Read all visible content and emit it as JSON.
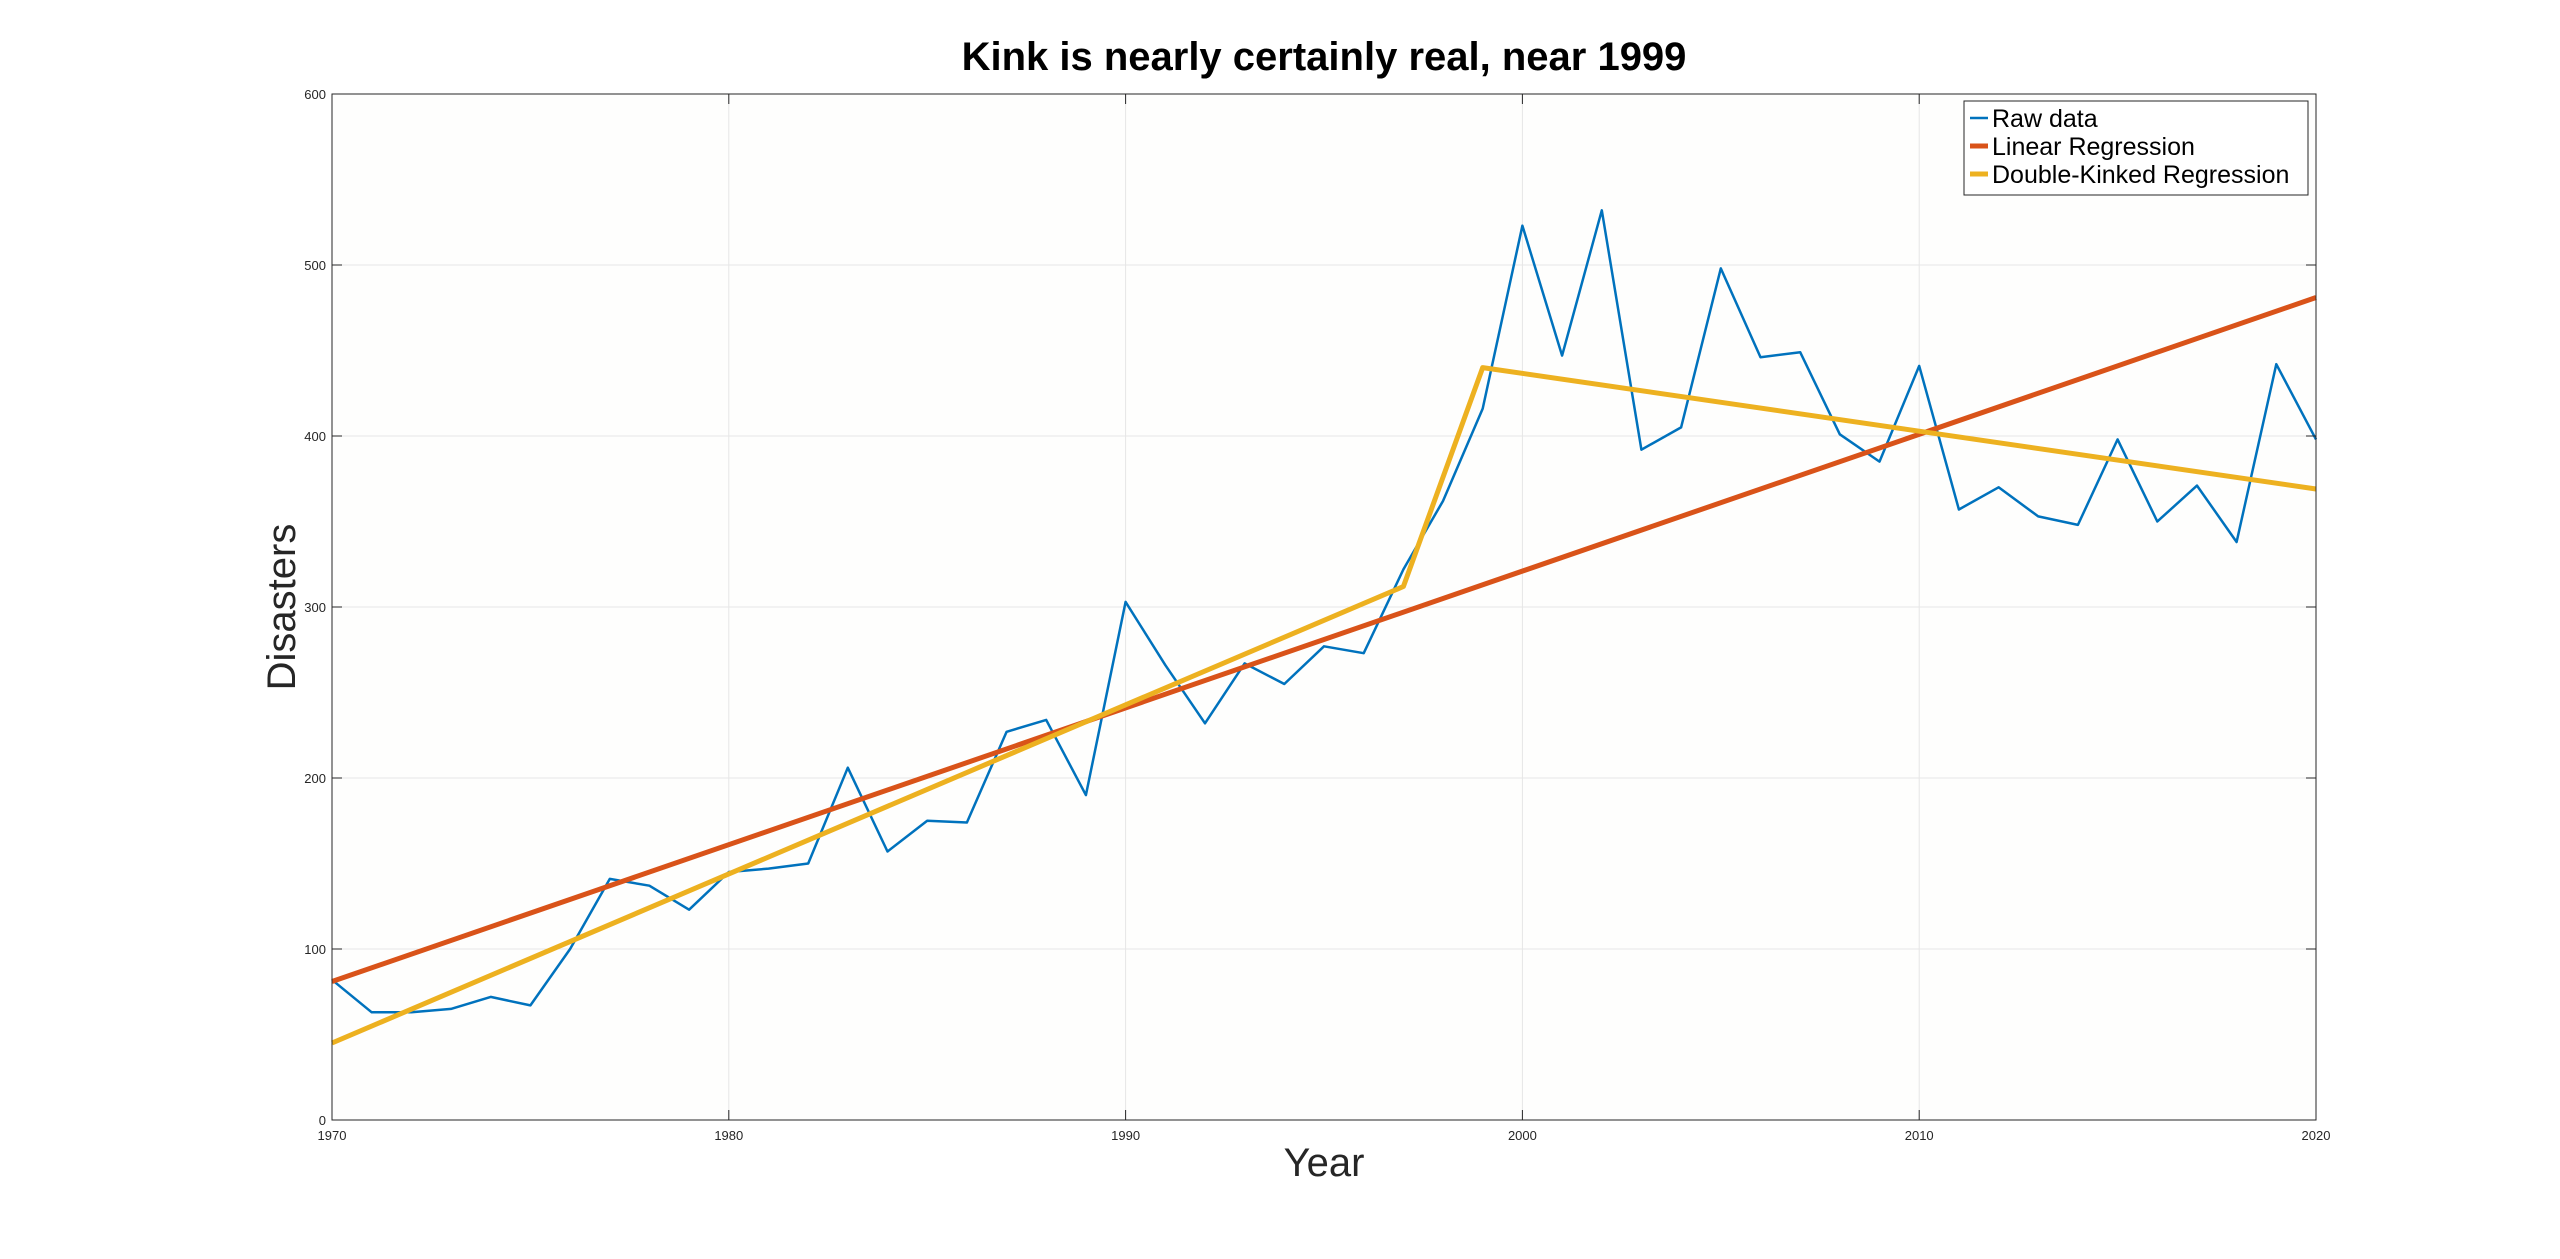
{
  "chart_data": {
    "type": "line",
    "title": "Kink is nearly certainly real, near 1999",
    "xlabel": "Year",
    "ylabel": "Disasters",
    "xlim": [
      1970,
      2020
    ],
    "ylim": [
      0,
      600
    ],
    "xticks": [
      1970,
      1980,
      1990,
      2000,
      2010,
      2020
    ],
    "yticks": [
      0,
      100,
      200,
      300,
      400,
      500,
      600
    ],
    "grid": true,
    "legend_position": "top-right",
    "series": [
      {
        "name": "Raw data",
        "color": "#0072BD",
        "x": [
          1970,
          1971,
          1972,
          1973,
          1974,
          1975,
          1976,
          1977,
          1978,
          1979,
          1980,
          1981,
          1982,
          1983,
          1984,
          1985,
          1986,
          1987,
          1988,
          1989,
          1990,
          1991,
          1992,
          1993,
          1994,
          1995,
          1996,
          1997,
          1998,
          1999,
          2000,
          2001,
          2002,
          2003,
          2004,
          2005,
          2006,
          2007,
          2008,
          2009,
          2010,
          2011,
          2012,
          2013,
          2014,
          2015,
          2016,
          2017,
          2018,
          2019,
          2020
        ],
        "y": [
          82,
          63,
          63,
          65,
          72,
          67,
          100,
          141,
          137,
          123,
          145,
          147,
          150,
          206,
          157,
          175,
          174,
          227,
          234,
          190,
          303,
          266,
          232,
          267,
          255,
          277,
          273,
          322,
          362,
          416,
          523,
          447,
          532,
          392,
          405,
          498,
          446,
          449,
          401,
          385,
          441,
          357,
          370,
          353,
          348,
          398,
          350,
          371,
          338,
          442,
          398
        ]
      },
      {
        "name": "Linear Regression",
        "color": "#D95319",
        "x": [
          1970,
          2020
        ],
        "y": [
          81,
          481
        ]
      },
      {
        "name": "Double-Kinked Regression",
        "color": "#EDB120",
        "x": [
          1970,
          1997,
          1999,
          2020
        ],
        "y": [
          45,
          312,
          440,
          369
        ]
      }
    ]
  }
}
